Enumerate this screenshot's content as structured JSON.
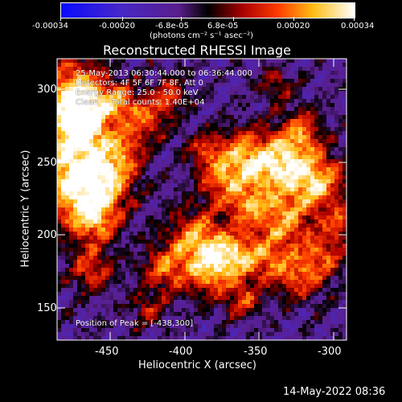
{
  "colorbar": {
    "ticks": [
      "-0.00034",
      "-0.00020",
      "-6.8e-05",
      "6.8e-05",
      "0.00020",
      "0.00034"
    ],
    "units": "(photons cm⁻² s⁻¹ asec⁻²)"
  },
  "title": "Reconstructed RHESSI Image",
  "overlay": {
    "line1": "25-May-2013 06:30:44.000 to 06:36:44.000",
    "line2": "Detectors: 4F 5F 6F 7F 8F, Att 0",
    "line3": "Energy Range: 25.0 - 50.0 keV",
    "line4": "Clean     Total counts: 1.40E+04",
    "peak": "Position of Peak = [-438,300]"
  },
  "xaxis": {
    "label": "Heliocentric X (arcsec)",
    "ticks": [
      "-450",
      "-400",
      "-350",
      "-300"
    ]
  },
  "yaxis": {
    "label": "Heliocentric Y (arcsec)",
    "ticks": [
      "300",
      "250",
      "200",
      "150"
    ]
  },
  "timestamp": "14-May-2022 08:36"
}
